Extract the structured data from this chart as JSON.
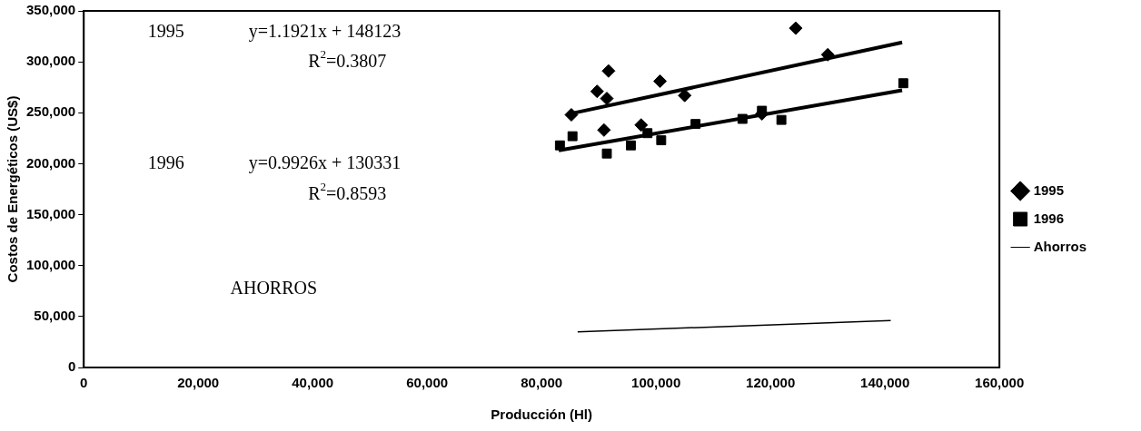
{
  "chart_data": {
    "type": "scatter",
    "xlabel": "Producción (Hl)",
    "ylabel": "Costos de Energéticos (US$)",
    "xlim": [
      0,
      160000
    ],
    "xticks": [
      0,
      {
        "value": 20000,
        "label": "20,000"
      },
      {
        "value": 40000,
        "label": "40,000"
      },
      {
        "value": 60000,
        "label": "60,000"
      },
      {
        "value": 80000,
        "label": "80,000"
      },
      {
        "value": 100000,
        "label": "100,000"
      },
      {
        "value": 120000,
        "label": "120,000"
      },
      {
        "value": 140000,
        "label": "140,000"
      },
      {
        "value": 160000,
        "label": "160,000"
      }
    ],
    "ylim": [
      0,
      350000
    ],
    "yticks": [
      0,
      {
        "value": 50000,
        "label": "50,000"
      },
      {
        "value": 100000,
        "label": "100,000"
      },
      {
        "value": 150000,
        "label": "150,000"
      },
      {
        "value": 200000,
        "label": "200,000"
      },
      {
        "value": 250000,
        "label": "250,000"
      },
      {
        "value": 300000,
        "label": "300,000"
      },
      {
        "value": 350000,
        "label": "350,000"
      }
    ],
    "grid": false,
    "legend": "right",
    "series": [
      {
        "name": "1995",
        "type": "scatter",
        "marker": "diamond",
        "color": "#000000",
        "x": [
          85200,
          89700,
          91700,
          91400,
          90900,
          100700,
          105000,
          97400,
          118500,
          124400,
          130000
        ],
        "values": [
          248000,
          271000,
          291000,
          264000,
          233000,
          281000,
          267000,
          238000,
          249000,
          333000,
          307000
        ]
      },
      {
        "name": "1996",
        "type": "scatter",
        "marker": "square",
        "color": "#000000",
        "x": [
          83200,
          85400,
          91400,
          95600,
          98500,
          100900,
          106900,
          115100,
          118500,
          121900,
          143200
        ],
        "values": [
          218000,
          227000,
          210000,
          218000,
          230000,
          223000,
          239000,
          244000,
          252000,
          243000,
          279000
        ]
      },
      {
        "name": "Ahorros",
        "type": "line",
        "marker": "none",
        "line_style": "solid",
        "color": "#000000",
        "x": [
          86300,
          141000
        ],
        "values": [
          35000,
          46000
        ]
      },
      {
        "type": "line",
        "marker": "none",
        "color": "#000000",
        "x": [
          85000,
          143000
        ],
        "values": [
          249000,
          319000
        ]
      },
      {
        "type": "line",
        "marker": "none",
        "color": "#000000",
        "x": [
          83000,
          143000
        ],
        "values": [
          213000,
          272000
        ]
      }
    ],
    "annotations": [
      "1995",
      "y=1.1921x + 148123",
      "R$^{2}$=0.3807",
      "1996",
      "y=0.9926x + 130331",
      "R$^{2}$=0.8593",
      "AHORROS"
    ]
  }
}
